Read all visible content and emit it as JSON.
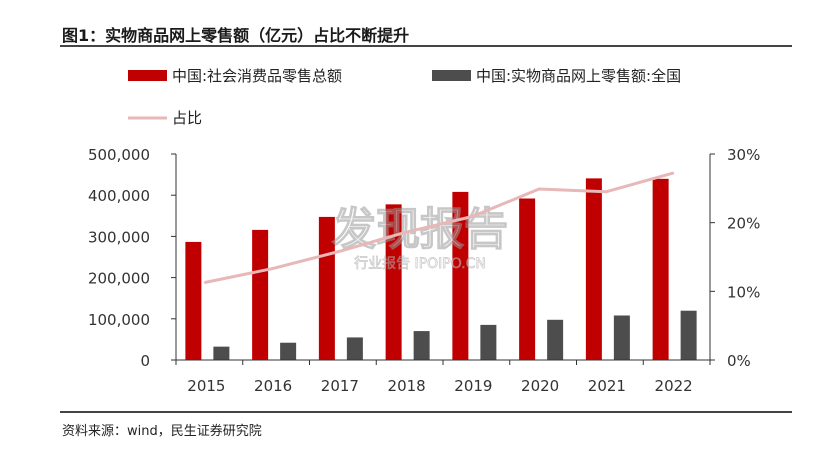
{
  "header": {
    "title": "图1：实物商品网上零售额（亿元）占比不断提升"
  },
  "footer": {
    "source": "资料来源：wind，民生证券研究院"
  },
  "watermark": {
    "line1": "发现报告",
    "line2": "行业报告 IPOIPO.CN"
  },
  "colors": {
    "series1": "#C00000",
    "series2": "#4D4D4D",
    "line": "#E8B7B7"
  },
  "chart_data": {
    "type": "bar",
    "categories": [
      "2015",
      "2016",
      "2017",
      "2018",
      "2019",
      "2020",
      "2021",
      "2022"
    ],
    "series": [
      {
        "name": "中国:社会消费品零售总额",
        "values": [
          286588,
          315806,
          347327,
          377783,
          408017,
          391981,
          440823,
          439733
        ]
      },
      {
        "name": "中国:实物商品网上零售额:全国",
        "values": [
          32424,
          41944,
          54806,
          70198,
          85239,
          97590,
          108042,
          119642
        ]
      }
    ],
    "line_series": {
      "name": "占比",
      "values": [
        11.3,
        13.3,
        15.8,
        18.6,
        20.9,
        24.9,
        24.5,
        27.2
      ]
    },
    "y_left": {
      "min": 0,
      "max": 500000,
      "ticks": [
        "0",
        "100,000",
        "200,000",
        "300,000",
        "400,000",
        "500,000"
      ]
    },
    "y_right": {
      "min": 0,
      "max": 30,
      "ticks": [
        "0%",
        "10%",
        "20%",
        "30%"
      ]
    },
    "legend_position": "top"
  }
}
